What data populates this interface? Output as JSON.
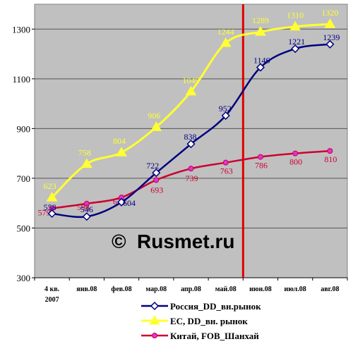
{
  "chart_data": {
    "type": "line",
    "categories": [
      "4 кв. 2007",
      "янв.08",
      "фев.08",
      "мар.08",
      "апр.08",
      "май.08",
      "июн.08",
      "июл.08",
      "авг.08"
    ],
    "ylim": [
      300,
      1400
    ],
    "yticks": [
      300,
      500,
      700,
      900,
      1100,
      1300
    ],
    "grid": true,
    "legend_position": "bottom",
    "marker_line_after_category": "май.08",
    "series": [
      {
        "name": "Россия_DD_вн.рынок",
        "values": [
          558,
          546,
          604,
          722,
          838,
          952,
          1146,
          1221,
          1239
        ],
        "color": "#000080",
        "labels": [
          "558",
          "546",
          "604",
          "722",
          "838",
          "952",
          "1146",
          "1221",
          "1239"
        ]
      },
      {
        "name": "ЕС, DD_вн. рынок",
        "values": [
          623,
          758,
          804,
          906,
          1049,
          1244,
          1289,
          1310,
          1320
        ],
        "color": "#ffff33",
        "labels": [
          "623",
          "758",
          "804",
          "906",
          "1049",
          "1244",
          "1289",
          "1310",
          "1320"
        ]
      },
      {
        "name": "Китай, FOB_Шанхай",
        "values": [
          579,
          598,
          623,
          693,
          739,
          763,
          786,
          800,
          810
        ],
        "color": "#cc0033",
        "labels": [
          "579",
          "598",
          "623",
          "693",
          "739",
          "763",
          "786",
          "800",
          "810"
        ]
      }
    ]
  },
  "watermark": {
    "symbol": "©",
    "text": "Rusmet.ru"
  }
}
